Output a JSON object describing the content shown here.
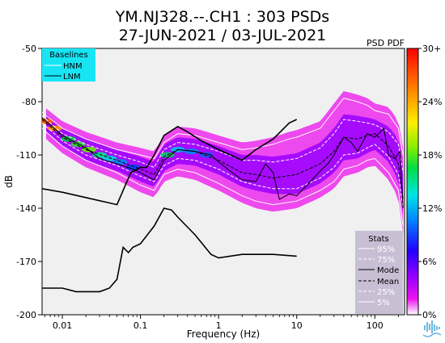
{
  "title_line1": "YM.NJ328.--.CH1 : 303 PSDs",
  "title_line2": "27-JUN-2021 / 03-JUL-2021",
  "colorbar_title": "PSD PDF",
  "colors": {
    "plot_bg": "#f0f0f0",
    "legend_bg": "#17e5f4",
    "stats_bg": "#c8bfd4",
    "pdf_main": "#9900ff",
    "pdf_outer": "#ee11ee"
  },
  "chart_data": {
    "type": "heatmap",
    "xlabel": "Frequency (Hz)",
    "ylabel": "dB",
    "x_scale": "log",
    "xlim": [
      0.0055,
      240
    ],
    "ylim": [
      -200,
      -50
    ],
    "x_ticks": [
      0.01,
      0.1,
      1,
      10,
      100
    ],
    "x_tick_labels": [
      "0.01",
      "0.1",
      "1",
      "10",
      "100"
    ],
    "y_ticks": [
      -50,
      -80,
      -110,
      -140,
      -170,
      -200
    ],
    "y_tick_labels": [
      "-50",
      "-80",
      "-110",
      "-140",
      "-170",
      "-200"
    ],
    "colorbar": {
      "range": [
        0,
        30
      ],
      "ticks": [
        0,
        6,
        12,
        18,
        24,
        30
      ],
      "tick_labels": [
        "0%",
        "6%",
        "12%",
        "18%",
        "24%",
        "30+"
      ]
    },
    "legend_baselines": {
      "title": "Baselines",
      "entries": [
        "HNM",
        "LNM"
      ]
    },
    "legend_stats": {
      "title": "Stats",
      "entries": [
        "95%",
        "75%",
        "Mode",
        "Mean",
        "25%",
        "5%"
      ]
    },
    "series": [
      {
        "name": "HNM",
        "points": [
          [
            0.0055,
            -129
          ],
          [
            0.01,
            -131
          ],
          [
            0.02,
            -134
          ],
          [
            0.05,
            -138
          ],
          [
            0.075,
            -120
          ],
          [
            0.1,
            -117
          ],
          [
            0.12,
            -117
          ],
          [
            0.15,
            -110
          ],
          [
            0.2,
            -99
          ],
          [
            0.3,
            -94
          ],
          [
            0.4,
            -97
          ],
          [
            0.6,
            -102
          ],
          [
            1,
            -107
          ],
          [
            2,
            -113
          ],
          [
            3,
            -107
          ],
          [
            5,
            -101
          ],
          [
            8,
            -92
          ],
          [
            10,
            -90
          ]
        ]
      },
      {
        "name": "LNM",
        "points": [
          [
            0.0055,
            -185
          ],
          [
            0.01,
            -185
          ],
          [
            0.015,
            -187
          ],
          [
            0.03,
            -187
          ],
          [
            0.04,
            -185
          ],
          [
            0.05,
            -180
          ],
          [
            0.06,
            -162
          ],
          [
            0.07,
            -165
          ],
          [
            0.08,
            -162
          ],
          [
            0.1,
            -160
          ],
          [
            0.15,
            -150
          ],
          [
            0.2,
            -140
          ],
          [
            0.25,
            -141
          ],
          [
            0.3,
            -145
          ],
          [
            0.5,
            -155
          ],
          [
            0.8,
            -166
          ],
          [
            1,
            -168
          ],
          [
            2,
            -166
          ],
          [
            5,
            -166
          ],
          [
            10,
            -167
          ]
        ]
      },
      {
        "name": "Mode",
        "points": [
          [
            0.0055,
            -89
          ],
          [
            0.01,
            -99
          ],
          [
            0.02,
            -106
          ],
          [
            0.03,
            -112
          ],
          [
            0.05,
            -115
          ],
          [
            0.08,
            -118
          ],
          [
            0.1,
            -120
          ],
          [
            0.15,
            -124
          ],
          [
            0.2,
            -113
          ],
          [
            0.3,
            -107
          ],
          [
            0.5,
            -108
          ],
          [
            0.8,
            -110
          ],
          [
            1,
            -114
          ],
          [
            1.5,
            -120
          ],
          [
            2,
            -124
          ],
          [
            3,
            -125
          ],
          [
            4,
            -115
          ],
          [
            5,
            -120
          ],
          [
            6,
            -135
          ],
          [
            8,
            -132
          ],
          [
            10,
            -133
          ],
          [
            15,
            -125
          ],
          [
            20,
            -119
          ],
          [
            25,
            -115
          ],
          [
            30,
            -110
          ],
          [
            40,
            -100
          ],
          [
            50,
            -103
          ],
          [
            60,
            -108
          ],
          [
            80,
            -98
          ],
          [
            100,
            -100
          ],
          [
            130,
            -95
          ],
          [
            150,
            -110
          ],
          [
            180,
            -112
          ],
          [
            210,
            -108
          ],
          [
            230,
            -140
          ]
        ]
      },
      {
        "name": "Mean",
        "points": [
          [
            0.0055,
            -90
          ],
          [
            0.01,
            -100
          ],
          [
            0.02,
            -107
          ],
          [
            0.05,
            -113
          ],
          [
            0.1,
            -118
          ],
          [
            0.15,
            -121
          ],
          [
            0.2,
            -111
          ],
          [
            0.3,
            -107
          ],
          [
            0.5,
            -108
          ],
          [
            1,
            -113
          ],
          [
            2,
            -120
          ],
          [
            3,
            -121
          ],
          [
            5,
            -123
          ],
          [
            10,
            -121
          ],
          [
            20,
            -115
          ],
          [
            30,
            -108
          ],
          [
            40,
            -100
          ],
          [
            60,
            -101
          ],
          [
            80,
            -99
          ],
          [
            100,
            -98
          ],
          [
            150,
            -105
          ],
          [
            200,
            -115
          ],
          [
            230,
            -135
          ]
        ]
      },
      {
        "name": "95%",
        "points": [
          [
            0.0055,
            -86
          ],
          [
            0.01,
            -95
          ],
          [
            0.02,
            -101
          ],
          [
            0.05,
            -107
          ],
          [
            0.1,
            -110
          ],
          [
            0.15,
            -112
          ],
          [
            0.2,
            -103
          ],
          [
            0.3,
            -98
          ],
          [
            0.5,
            -99
          ],
          [
            1,
            -103
          ],
          [
            2,
            -107
          ],
          [
            3,
            -106
          ],
          [
            5,
            -104
          ],
          [
            8,
            -101
          ],
          [
            10,
            -100
          ],
          [
            20,
            -95
          ],
          [
            30,
            -85
          ],
          [
            40,
            -78
          ],
          [
            60,
            -80
          ],
          [
            80,
            -82
          ],
          [
            100,
            -85
          ],
          [
            150,
            -87
          ],
          [
            200,
            -95
          ],
          [
            230,
            -110
          ]
        ]
      },
      {
        "name": "75%",
        "points": [
          [
            0.0055,
            -88
          ],
          [
            0.01,
            -98
          ],
          [
            0.02,
            -104
          ],
          [
            0.05,
            -110
          ],
          [
            0.1,
            -114
          ],
          [
            0.15,
            -117
          ],
          [
            0.2,
            -107
          ],
          [
            0.3,
            -103
          ],
          [
            0.5,
            -104
          ],
          [
            1,
            -108
          ],
          [
            2,
            -113
          ],
          [
            3,
            -113
          ],
          [
            5,
            -114
          ],
          [
            10,
            -112
          ],
          [
            20,
            -106
          ],
          [
            30,
            -98
          ],
          [
            40,
            -90
          ],
          [
            60,
            -91
          ],
          [
            80,
            -92
          ],
          [
            100,
            -93
          ],
          [
            150,
            -97
          ],
          [
            200,
            -104
          ],
          [
            230,
            -120
          ]
        ]
      },
      {
        "name": "25%",
        "points": [
          [
            0.0055,
            -92
          ],
          [
            0.01,
            -102
          ],
          [
            0.02,
            -110
          ],
          [
            0.05,
            -116
          ],
          [
            0.1,
            -122
          ],
          [
            0.15,
            -125
          ],
          [
            0.2,
            -116
          ],
          [
            0.3,
            -112
          ],
          [
            0.5,
            -113
          ],
          [
            1,
            -118
          ],
          [
            2,
            -125
          ],
          [
            3,
            -127
          ],
          [
            5,
            -129
          ],
          [
            10,
            -129
          ],
          [
            20,
            -123
          ],
          [
            30,
            -117
          ],
          [
            40,
            -110
          ],
          [
            60,
            -109
          ],
          [
            80,
            -106
          ],
          [
            100,
            -104
          ],
          [
            150,
            -111
          ],
          [
            200,
            -121
          ],
          [
            230,
            -140
          ]
        ]
      },
      {
        "name": "5%",
        "points": [
          [
            0.0055,
            -95
          ],
          [
            0.01,
            -105
          ],
          [
            0.02,
            -113
          ],
          [
            0.05,
            -120
          ],
          [
            0.1,
            -127
          ],
          [
            0.15,
            -130
          ],
          [
            0.2,
            -121
          ],
          [
            0.3,
            -118
          ],
          [
            0.5,
            -120
          ],
          [
            1,
            -126
          ],
          [
            2,
            -133
          ],
          [
            3,
            -136
          ],
          [
            5,
            -138
          ],
          [
            10,
            -136
          ],
          [
            20,
            -130
          ],
          [
            30,
            -125
          ],
          [
            40,
            -118
          ],
          [
            60,
            -116
          ],
          [
            80,
            -113
          ],
          [
            100,
            -112
          ],
          [
            150,
            -120
          ],
          [
            200,
            -130
          ],
          [
            230,
            -150
          ]
        ]
      }
    ]
  }
}
